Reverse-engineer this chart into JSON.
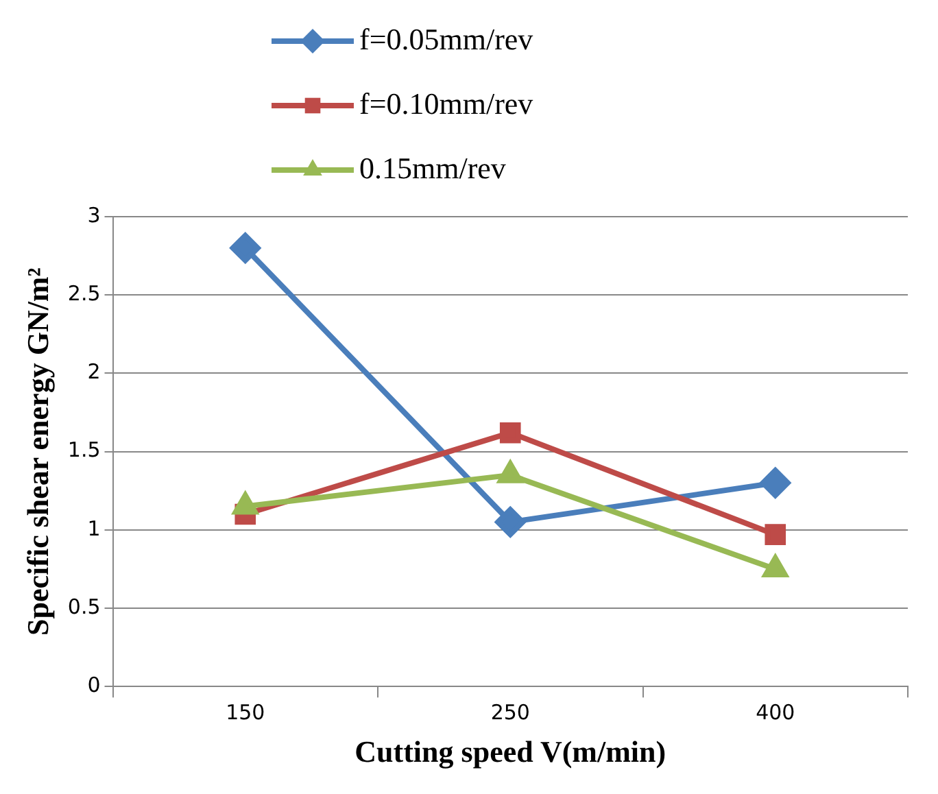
{
  "chart_data": {
    "type": "line",
    "xlabel": "Cutting speed V(m/min)",
    "ylabel": "Specific shear energy GN/m²",
    "categories": [
      "150",
      "250",
      "400"
    ],
    "series": [
      {
        "name": "f=0.05mm/rev",
        "color": "#4a7ebb",
        "values": [
          2.8,
          1.05,
          1.3
        ],
        "marker": "diamond"
      },
      {
        "name": "f=0.10mm/rev",
        "color": "#be4b48",
        "values": [
          1.1,
          1.62,
          0.97
        ],
        "marker": "square"
      },
      {
        "name": "0.15mm/rev",
        "color": "#98b954",
        "values": [
          1.15,
          1.35,
          0.75
        ],
        "marker": "triangle"
      }
    ],
    "ylim": [
      0,
      3
    ],
    "yticks": [
      0,
      {
        "value": 0.5,
        "label": "0.5"
      },
      1,
      {
        "value": 1.5,
        "label": "1.5"
      },
      2,
      {
        "value": 2.5,
        "label": "2.5"
      },
      3
    ],
    "grid": "y",
    "legend": "top",
    "line_style": "solid"
  }
}
